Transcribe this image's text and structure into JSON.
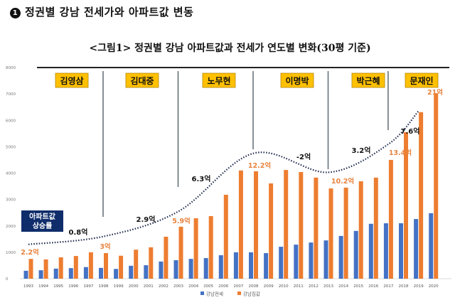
{
  "heading": {
    "number": "1",
    "text": "정권별 강남 전세가와 아파트값 변동"
  },
  "figure_title": "<그림1> 정권별 강남 아파트값과 전세가 연도별 변화(30평 기준)",
  "chart_data": {
    "type": "bar",
    "title": "<그림1> 정권별 강남 아파트값과 전세가 연도별 변화(30평 기준)",
    "xlabel": "",
    "ylabel": "",
    "ylim": [
      0,
      8000
    ],
    "yticks": [
      0,
      1000,
      2000,
      3000,
      4000,
      5000,
      6000,
      7000,
      8000
    ],
    "grid": false,
    "legend_position": "bottom",
    "categories": [
      "1993",
      "1994",
      "1995",
      "1996",
      "1997",
      "1998",
      "1999",
      "2000",
      "2001",
      "2002",
      "2003",
      "2004",
      "2005",
      "2006",
      "2007",
      "2008",
      "2009",
      "2010",
      "2011",
      "2012",
      "2013",
      "2014",
      "2015",
      "2016",
      "2017",
      "2018",
      "2019",
      "2020"
    ],
    "series": [
      {
        "name": "강남전세",
        "color": "#4472c4",
        "values": [
          300,
          320,
          380,
          400,
          440,
          410,
          370,
          490,
          510,
          650,
          700,
          750,
          780,
          890,
          1000,
          1000,
          970,
          1210,
          1290,
          1370,
          1450,
          1620,
          1810,
          2080,
          2100,
          2100,
          2260,
          2480
        ]
      },
      {
        "name": "강남집값",
        "color": "#ed7d31",
        "values": [
          750,
          730,
          810,
          860,
          1000,
          970,
          870,
          1100,
          1190,
          1590,
          1970,
          2290,
          2370,
          3180,
          4100,
          4070,
          3610,
          4120,
          4040,
          3830,
          3420,
          3450,
          3690,
          3830,
          4500,
          5550,
          6310,
          7030
        ]
      }
    ],
    "administrations": [
      {
        "name": "김영삼",
        "start": "1993",
        "end": "1998"
      },
      {
        "name": "김대중",
        "start": "1998",
        "end": "2003"
      },
      {
        "name": "노무현",
        "start": "2003",
        "end": "2008"
      },
      {
        "name": "이명박",
        "start": "2008",
        "end": "2013"
      },
      {
        "name": "박근혜",
        "start": "2013",
        "end": "2017"
      },
      {
        "name": "문재인",
        "start": "2017",
        "end": "2020"
      }
    ],
    "trend_line": {
      "label": "아파트값 상승률",
      "points": [
        {
          "year": "1993",
          "value": 1300
        },
        {
          "year": "1998",
          "value": 1600
        },
        {
          "year": "2003",
          "value": 2550
        },
        {
          "year": "2008",
          "value": 4750
        },
        {
          "year": "2013",
          "value": 4030
        },
        {
          "year": "2017",
          "value": 5100
        },
        {
          "year": "2019",
          "value": 6350
        }
      ],
      "annotations": [
        "0.8억",
        "2.9억",
        "6.3억",
        "-2억",
        "3.2억",
        "7.6억"
      ]
    },
    "price_labels": [
      {
        "year": "1993",
        "text": "2.2억"
      },
      {
        "year": "1998",
        "text": "3억"
      },
      {
        "year": "2003",
        "text": "5.9억"
      },
      {
        "year": "2008",
        "text": "12.2억"
      },
      {
        "year": "2013",
        "text": "10.2억"
      },
      {
        "year": "2017",
        "text": "13.4억"
      },
      {
        "year": "2020",
        "text": "21억"
      }
    ]
  },
  "colors": {
    "label_box": "#ffc000",
    "trend_box": "#0f2d6b",
    "price_label": "#e8843f",
    "trend_line": "#1f2b4d"
  }
}
